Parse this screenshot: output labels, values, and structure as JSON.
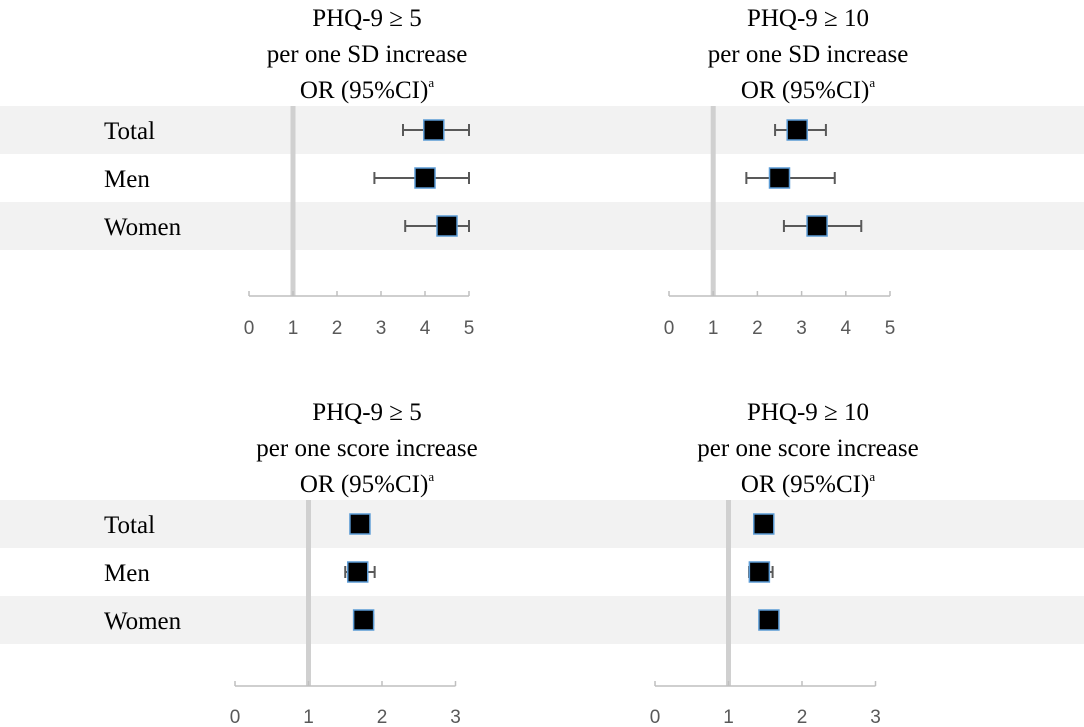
{
  "colors": {
    "band": "#f2f2f2",
    "ref_line": "#d0d0d0",
    "axis": "#bfbfbf",
    "marker_fill": "#000000",
    "marker_stroke": "#5b9bd5",
    "error_bar": "#595959"
  },
  "rows": [
    "Total",
    "Men",
    "Women"
  ],
  "chart_data": [
    {
      "type": "forest",
      "title_lines": [
        "PHQ-9 ≥ 5",
        "per one SD increase",
        "OR (95%CI)"
      ],
      "title_superscript": "a",
      "xlim": [
        0,
        5
      ],
      "xticks": [
        "0",
        "1",
        "2",
        "3",
        "4",
        "5"
      ],
      "reference_line": 1,
      "points": [
        {
          "label": "Total",
          "or": 4.2,
          "ci_low": 3.5,
          "ci_high": 5.0
        },
        {
          "label": "Men",
          "or": 4.0,
          "ci_low": 2.85,
          "ci_high": 5.0
        },
        {
          "label": "Women",
          "or": 4.5,
          "ci_low": 3.55,
          "ci_high": 5.0
        }
      ]
    },
    {
      "type": "forest",
      "title_lines": [
        "PHQ-9 ≥ 10",
        "per one SD increase",
        "OR (95%CI)"
      ],
      "title_superscript": "a",
      "xlim": [
        0,
        5
      ],
      "xticks": [
        "0",
        "1",
        "2",
        "3",
        "4",
        "5"
      ],
      "reference_line": 1,
      "points": [
        {
          "label": "Total",
          "or": 2.9,
          "ci_low": 2.4,
          "ci_high": 3.55
        },
        {
          "label": "Men",
          "or": 2.5,
          "ci_low": 1.75,
          "ci_high": 3.75
        },
        {
          "label": "Women",
          "or": 3.35,
          "ci_low": 2.6,
          "ci_high": 4.35
        }
      ]
    },
    {
      "type": "forest",
      "title_lines": [
        "PHQ-9 ≥ 5",
        "per one score increase",
        "OR (95%CI)"
      ],
      "title_superscript": "a",
      "xlim": [
        0,
        3
      ],
      "xticks": [
        "0",
        "1",
        "2",
        "3"
      ],
      "reference_line": 1,
      "points": [
        {
          "label": "Total",
          "or": 1.7,
          "ci_low": 1.65,
          "ci_high": 1.75
        },
        {
          "label": "Men",
          "or": 1.67,
          "ci_low": 1.5,
          "ci_high": 1.9
        },
        {
          "label": "Women",
          "or": 1.75,
          "ci_low": 1.68,
          "ci_high": 1.88
        }
      ]
    },
    {
      "type": "forest",
      "title_lines": [
        "PHQ-9 ≥ 10",
        "per one score increase",
        "OR (95%CI)"
      ],
      "title_superscript": "a",
      "xlim": [
        0,
        3
      ],
      "xticks": [
        "0",
        "1",
        "2",
        "3"
      ],
      "reference_line": 1,
      "points": [
        {
          "label": "Total",
          "or": 1.48,
          "ci_low": 1.43,
          "ci_high": 1.53
        },
        {
          "label": "Men",
          "or": 1.42,
          "ci_low": 1.28,
          "ci_high": 1.6
        },
        {
          "label": "Women",
          "or": 1.55,
          "ci_low": 1.48,
          "ci_high": 1.68
        }
      ]
    }
  ]
}
